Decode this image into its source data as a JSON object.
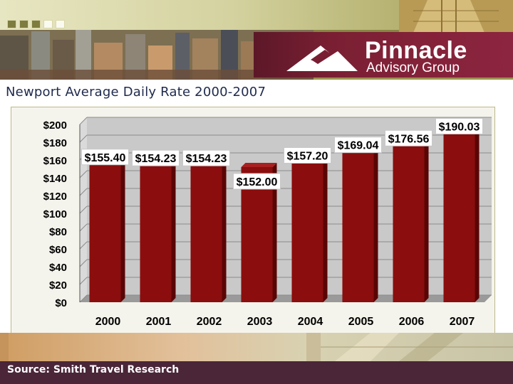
{
  "header": {
    "brand_name": "Pinnacle",
    "brand_sub": "Advisory Group"
  },
  "title": "Newport Average Daily Rate 2000-2007",
  "footer": {
    "source": "Source: Smith Travel Research"
  },
  "colors": {
    "bar": "#8b0d0d",
    "bar_dark": "#5a0505",
    "plot_bg": "#c9c9c9",
    "brand": "#7a1f33"
  },
  "chart_data": {
    "type": "bar",
    "categories": [
      "2000",
      "2001",
      "2002",
      "2003",
      "2004",
      "2005",
      "2006",
      "2007"
    ],
    "values": [
      155.4,
      154.23,
      154.23,
      152.0,
      157.2,
      169.04,
      176.56,
      190.03
    ],
    "data_labels": [
      "$155.40",
      "$154.23",
      "$154.23",
      "$152.00",
      "$157.20",
      "$169.04",
      "$176.56",
      "$190.03"
    ],
    "y_ticks": [
      "$0",
      "$20",
      "$40",
      "$60",
      "$80",
      "$100",
      "$120",
      "$140",
      "$160",
      "$180",
      "$200"
    ],
    "ylim": [
      0,
      200
    ],
    "y_step": 20,
    "xlabel": "",
    "ylabel": "",
    "grid": true,
    "legend": "none"
  }
}
